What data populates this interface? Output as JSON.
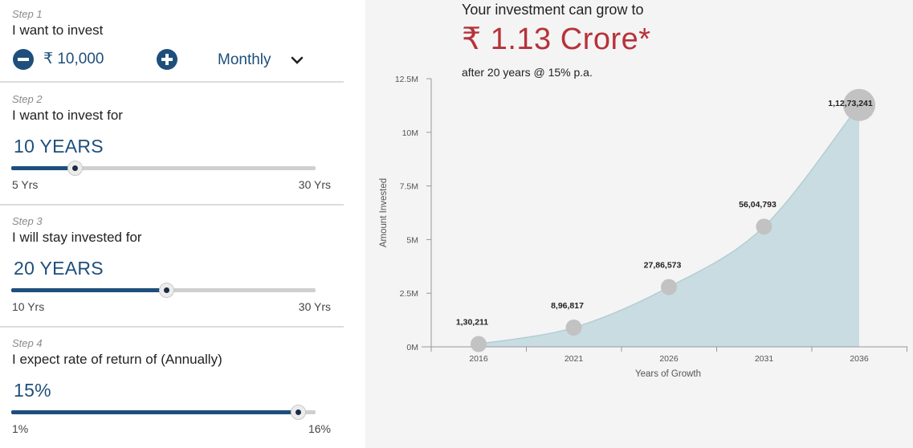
{
  "step1": {
    "label": "Step 1",
    "title": "I want to invest",
    "amount": "₹ 10,000",
    "frequency": "Monthly"
  },
  "step2": {
    "label": "Step 2",
    "title": "I want to invest for",
    "value": "10 YEARS",
    "min": "5 Yrs",
    "max": "30 Yrs",
    "fraction": 0.21
  },
  "step3": {
    "label": "Step 3",
    "title": "I will stay invested for",
    "value": "20 YEARS",
    "min": "10 Yrs",
    "max": "30 Yrs",
    "fraction": 0.51
  },
  "step4": {
    "label": "Step 4",
    "title": "I expect rate of return of (Annually)",
    "value": "15%",
    "min": "1%",
    "max": "16%",
    "fraction": 0.943
  },
  "result": {
    "headline": "Your investment can grow to",
    "amount": "₹ 1.13 Crore*",
    "subline": "after 20 years @ 15% p.a."
  },
  "colors": {
    "accent": "#1e4f7c",
    "result": "#b7323a",
    "area": "#c9dce2",
    "marker": "#c2c2c2"
  },
  "chart_data": {
    "type": "area",
    "x": [
      "2016",
      "2021",
      "2026",
      "2031",
      "2036"
    ],
    "values": [
      130211,
      896817,
      2786573,
      5604793,
      11273241
    ],
    "data_labels": [
      "1,30,211",
      "8,96,817",
      "27,86,573",
      "56,04,793",
      "1,12,73,241"
    ],
    "yticks": [
      "0M",
      "2.5M",
      "5M",
      "7.5M",
      "10M",
      "12.5M"
    ],
    "ylim": [
      0,
      12500000
    ],
    "xlabel": "Years of Growth",
    "ylabel": "Amount Invested",
    "grid": false
  }
}
